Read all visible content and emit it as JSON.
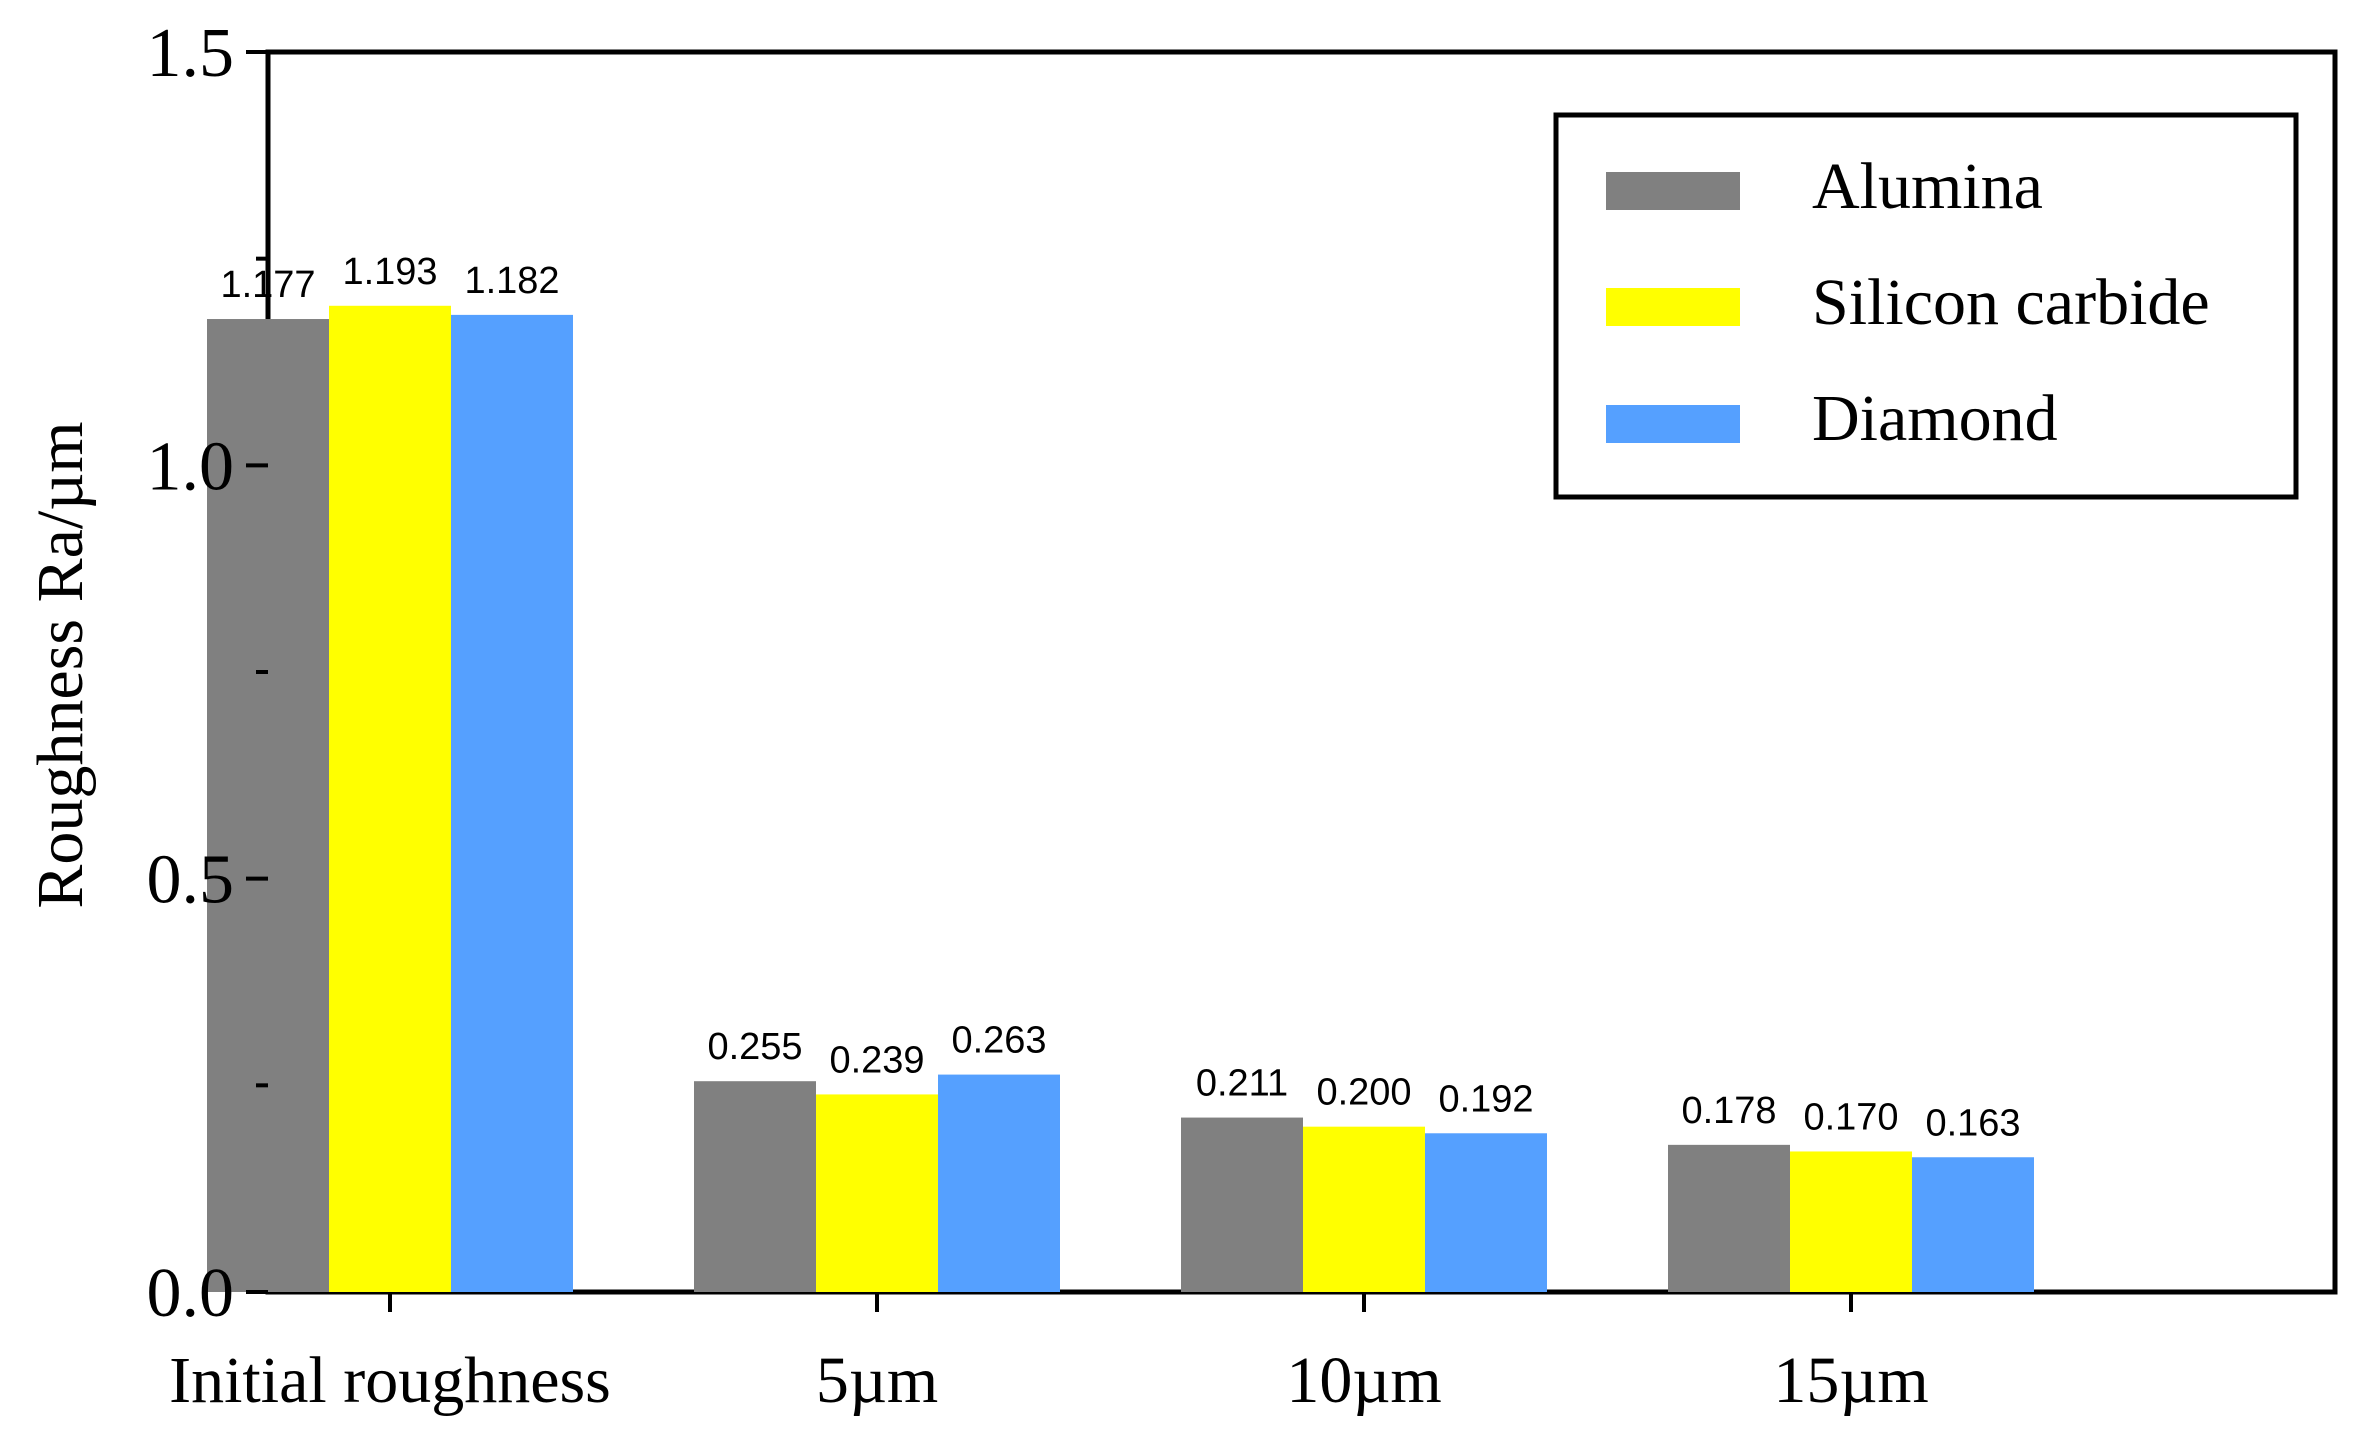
{
  "chart_data": {
    "type": "bar",
    "title": "",
    "xlabel": "",
    "ylabel": "Roughness  Ra/µm",
    "ylim": [
      0,
      1.5
    ],
    "yticks": [
      0.0,
      0.5,
      1.0,
      1.5
    ],
    "ytick_labels": [
      "0.0",
      "0.5",
      "1.0",
      "1.5"
    ],
    "categories": [
      "Initial roughness",
      "5µm",
      "10µm",
      "15µm"
    ],
    "series": [
      {
        "name": "Alumina",
        "color": "#808080",
        "values": [
          1.177,
          0.255,
          0.211,
          0.178
        ],
        "labels": [
          "1.177",
          "0.255",
          "0.211",
          "0.178"
        ]
      },
      {
        "name": "Silicon carbide",
        "color": "#ffff00",
        "values": [
          1.193,
          0.239,
          0.2,
          0.17
        ],
        "labels": [
          "1.193",
          "0.239",
          "0.200",
          "0.170"
        ]
      },
      {
        "name": "Diamond",
        "color": "#55a0ff",
        "values": [
          1.182,
          0.263,
          0.192,
          0.163
        ],
        "labels": [
          "1.182",
          "0.263",
          "0.192",
          "0.163"
        ]
      }
    ],
    "legend_position": "top-right",
    "grid": false
  }
}
